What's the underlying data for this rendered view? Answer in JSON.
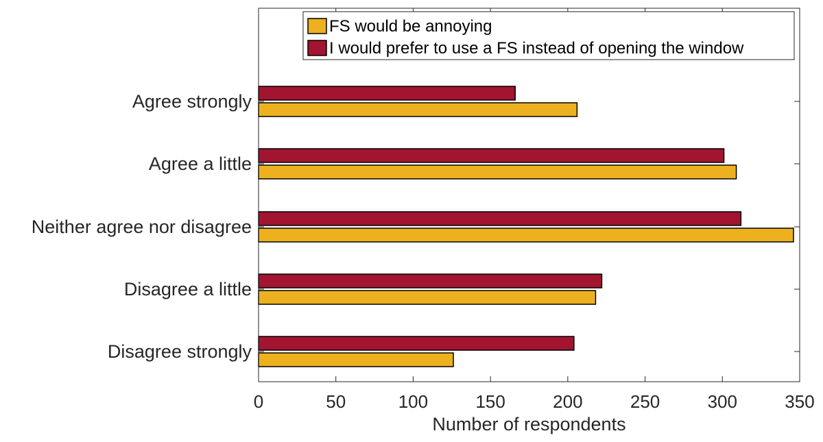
{
  "chart_data": {
    "type": "bar",
    "orientation": "horizontal",
    "title": "",
    "xlabel": "Number of respondents",
    "ylabel": "",
    "xlim": [
      0,
      350
    ],
    "xticks": [
      0,
      50,
      100,
      150,
      200,
      250,
      300,
      350
    ],
    "categories": [
      "Agree strongly",
      "Agree a little",
      "Neither agree nor disagree",
      "Disagree a little",
      "Disagree strongly"
    ],
    "series": [
      {
        "name": "FS would be annoying",
        "color": "#EDB120",
        "values": [
          206,
          309,
          346,
          218,
          126
        ]
      },
      {
        "name": "I would prefer to use a FS instead of opening the window",
        "color": "#A2142F",
        "values": [
          166,
          301,
          312,
          222,
          204
        ]
      }
    ],
    "grid": false,
    "legend_position": "top-right"
  }
}
